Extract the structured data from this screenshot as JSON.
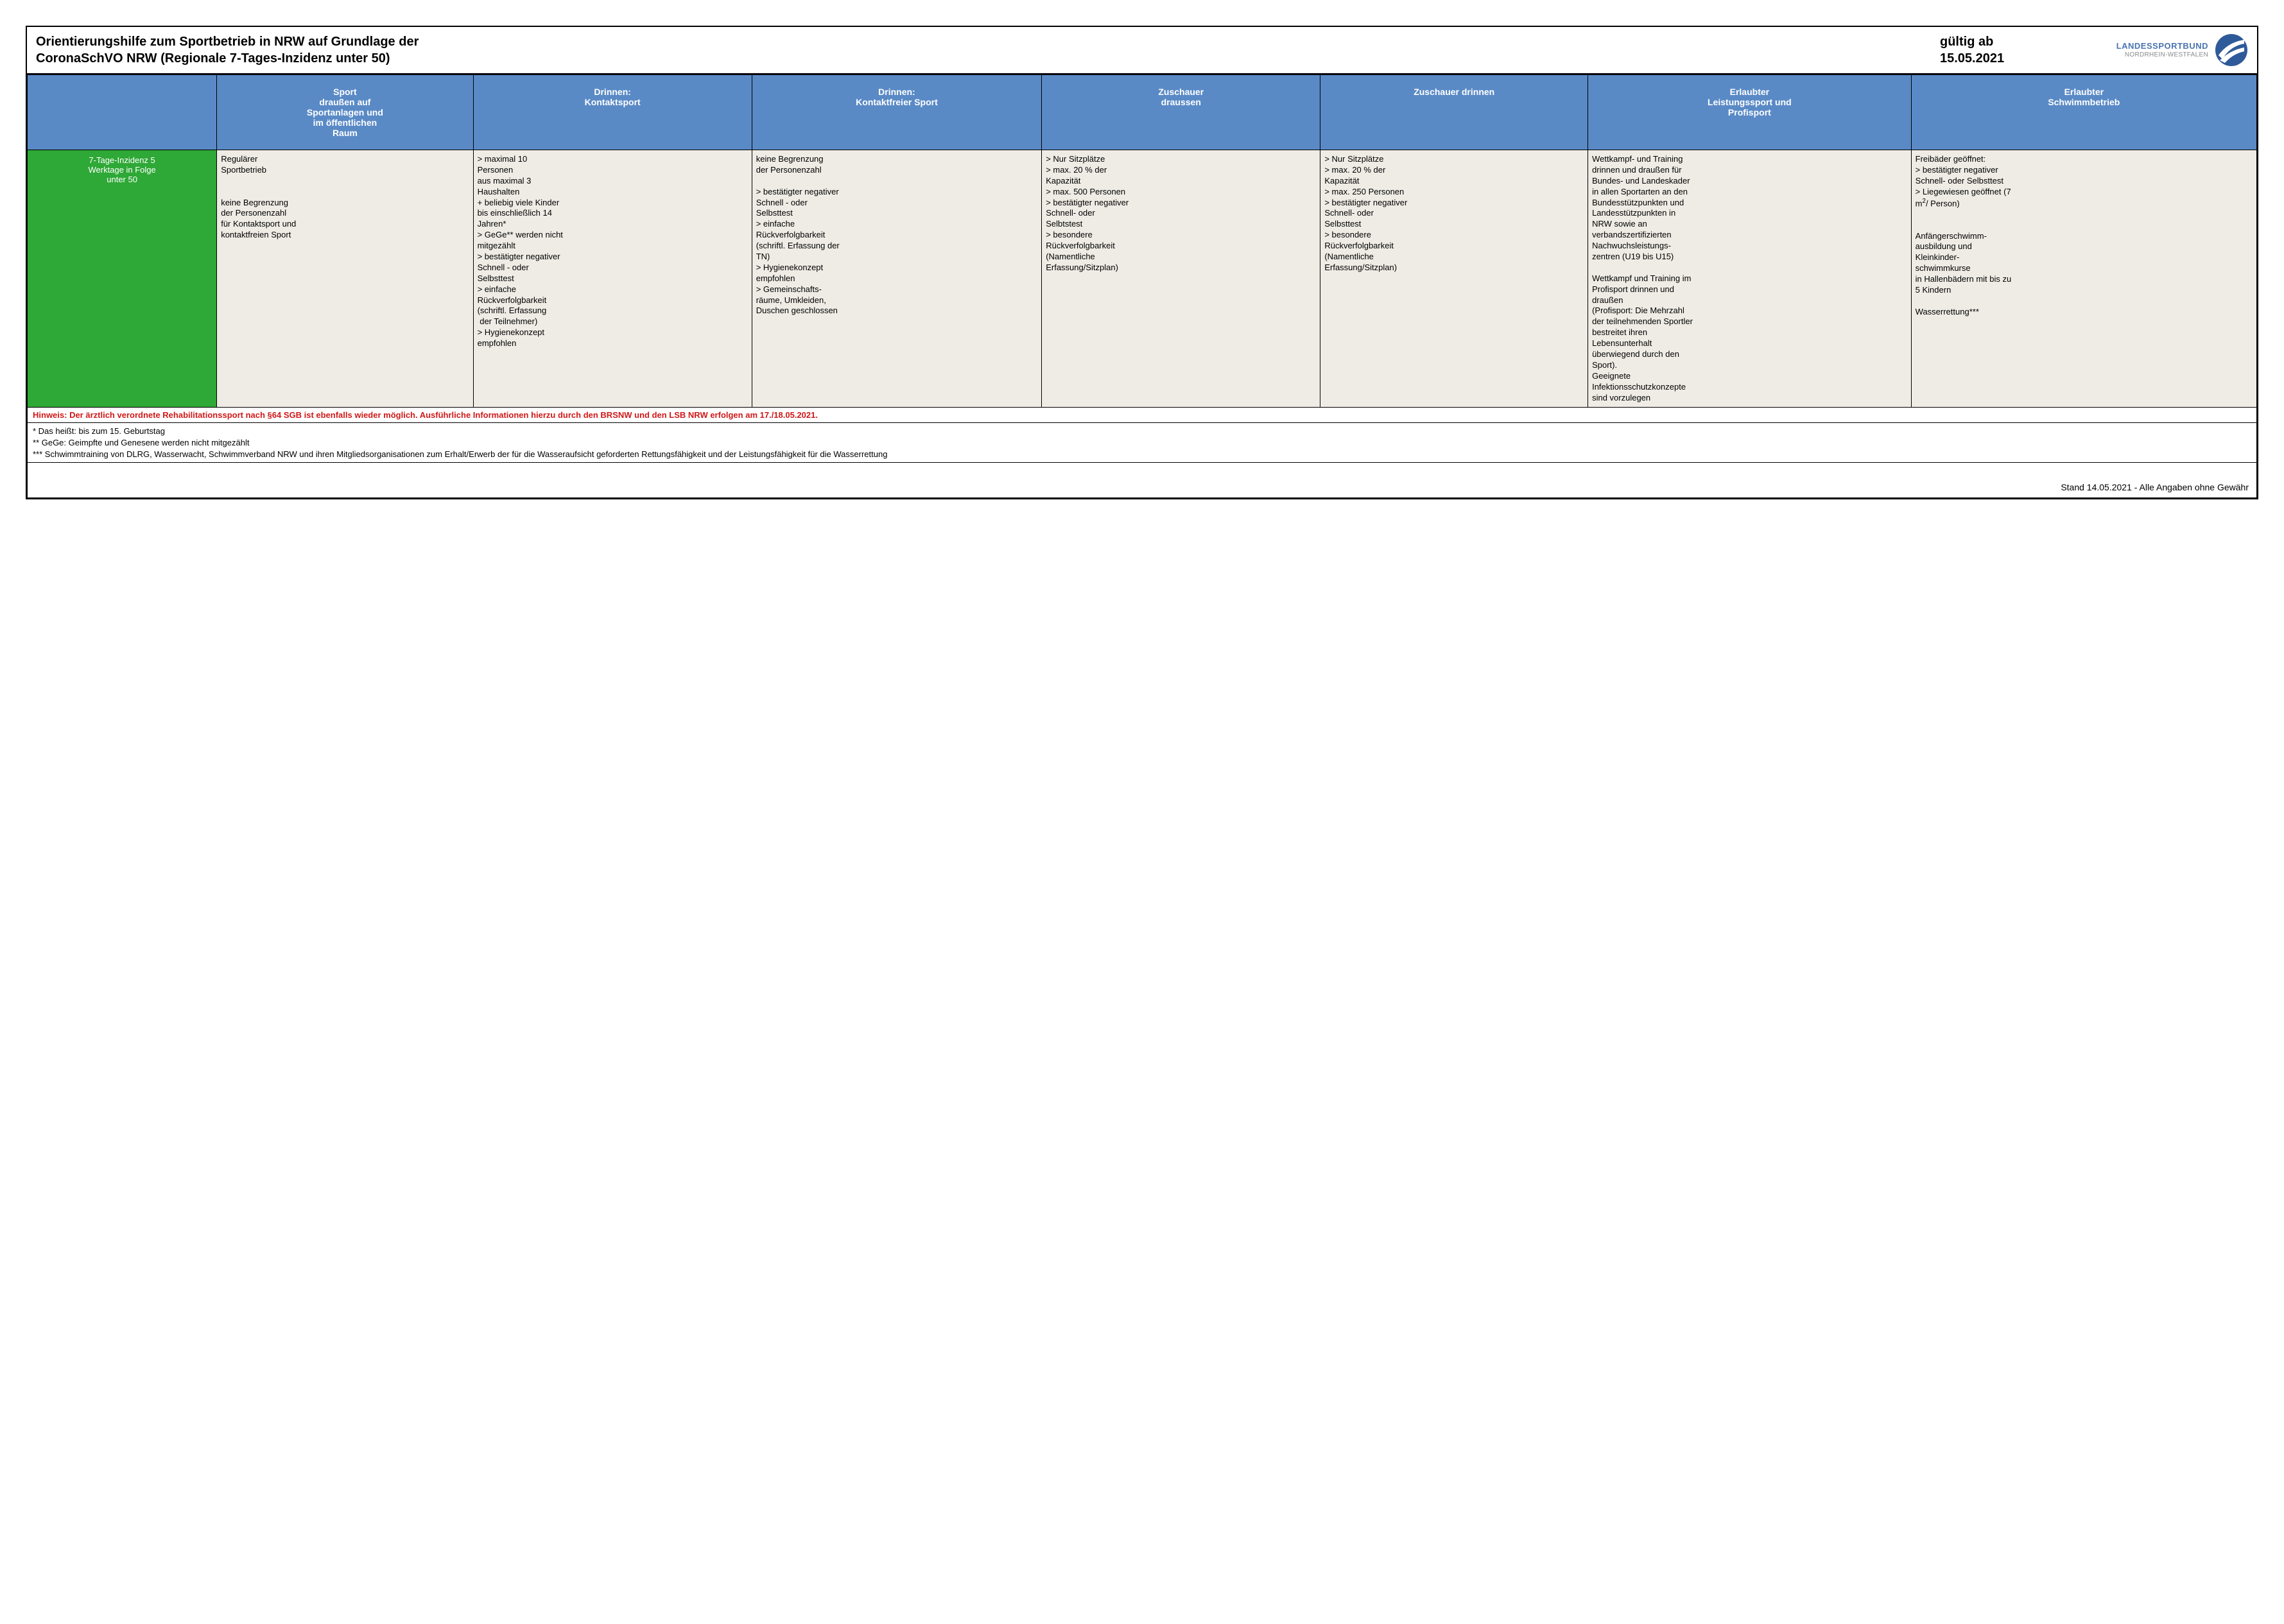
{
  "colors": {
    "border": "#000000",
    "header_bg": "#5a8ac6",
    "header_text": "#ffffff",
    "rowhead_bg": "#2ea836",
    "rowhead_text": "#ffffff",
    "cell_bg": "#eeece5",
    "hint_text": "#d01818",
    "logo_blue": "#4a74b0",
    "logo_grey": "#888a8c"
  },
  "typography": {
    "base_font": "Arial",
    "title_size_pt": 15,
    "header_size_pt": 10.5,
    "body_size_pt": 10,
    "footnote_size_pt": 10
  },
  "header": {
    "title_line1": "Orientierungshilfe zum Sportbetrieb in NRW auf Grundlage der",
    "title_line2": "CoronaSchVO NRW (Regionale 7-Tages-Inzidenz unter 50)",
    "valid_label": "gültig ab",
    "valid_date": "15.05.2021",
    "logo_text1": "LANDESSPORTBUND",
    "logo_text2": "NORDRHEIN-WESTFALEN"
  },
  "columns": [
    "Sport\ndraußen auf\nSportanlagen und\nim öffentlichen\nRaum",
    "Drinnen:\nKontaktsport",
    "Drinnen:\nKontaktfreier Sport",
    "Zuschauer\ndraussen",
    "Zuschauer drinnen",
    "Erlaubter\nLeistungssport und\nProfisport",
    "Erlaubter\nSchwimmbetrieb"
  ],
  "column_widths_pct": [
    8.5,
    11.5,
    12.5,
    13,
    12.5,
    12,
    14.5,
    15.5
  ],
  "row": {
    "label": "7-Tage-Inzidenz 5\nWerktage in Folge\nunter 50",
    "cells": [
      "Regulärer\nSportbetrieb\n\n\nkeine Begrenzung\nder Personenzahl\nfür Kontaktsport und\nkontaktfreien Sport",
      "> maximal 10\nPersonen\naus maximal 3\nHaushalten\n+ beliebig viele Kinder\nbis einschließlich 14\nJahren*\n> GeGe** werden nicht\nmitgezählt\n> bestätigter negativer\nSchnell - oder\nSelbsttest\n> einfache\nRückverfolgbarkeit\n(schriftl. Erfassung\n der Teilnehmer)\n> Hygienekonzept\nempfohlen",
      "keine Begrenzung\nder Personenzahl\n\n> bestätigter negativer\nSchnell - oder\nSelbsttest\n> einfache\nRückverfolgbarkeit\n(schriftl. Erfassung der\nTN)\n> Hygienekonzept\nempfohlen\n> Gemeinschafts-\nräume, Umkleiden,\nDuschen geschlossen",
      "> Nur Sitzplätze\n> max. 20 % der\nKapazität\n> max. 500 Personen\n> bestätigter negativer\nSchnell- oder\nSelbtstest\n> besondere\nRückverfolgbarkeit\n(Namentliche\nErfassung/Sitzplan)",
      "> Nur Sitzplätze\n> max. 20 % der\nKapazität\n> max. 250 Personen\n> bestätigter negativer\nSchnell- oder\nSelbsttest\n> besondere\nRückverfolgbarkeit\n(Namentliche\nErfassung/Sitzplan)",
      "Wettkampf- und Training\ndrinnen und draußen für\nBundes- und Landeskader\nin allen Sportarten an den\nBundesstützpunkten und\nLandesstützpunkten in\nNRW sowie an\nverbandszertifizierten\nNachwuchsleistungs-\nzentren (U19 bis U15)\n\nWettkampf und Training im\nProfisport drinnen und\ndraußen\n(Profisport: Die Mehrzahl\nder teilnehmenden Sportler\nbestreitet ihren\nLebensunterhalt\nüberwiegend durch den\nSport).\nGeeignete\nInfektionsschutzkonzepte\nsind vorzulegen",
      "Freibäder geöffnet:\n> bestätigter negativer\nSchnell- oder Selbsttest\n> Liegewiesen geöffnet (7\nm²/ Person)\n\n\nAnfängerschwimm-\nausbildung und\nKleinkinder-\nschwimmkurse\nin Hallenbädern mit bis zu\n5 Kindern\n\nWasserrettung***"
    ]
  },
  "hint": "Hinweis: Der ärztlich verordnete Rehabilitationssport nach §64 SGB ist ebenfalls wieder möglich. Ausführliche Informationen hierzu durch den BRSNW und den LSB NRW erfolgen am 17./18.05.2021.",
  "footnotes": "* Das heißt: bis zum 15. Geburtstag\n** GeGe: Geimpfte und Genesene werden nicht mitgezählt\n*** Schwimmtraining von DLRG, Wasserwacht, Schwimmverband NRW und ihren Mitgliedsorganisationen zum Erhalt/Erwerb der für die Wasseraufsicht geforderten Rettungsfähigkeit und der Leistungsfähigkeit für die Wasserrettung",
  "stand": "Stand 14.05.2021 - Alle Angaben ohne Gewähr"
}
